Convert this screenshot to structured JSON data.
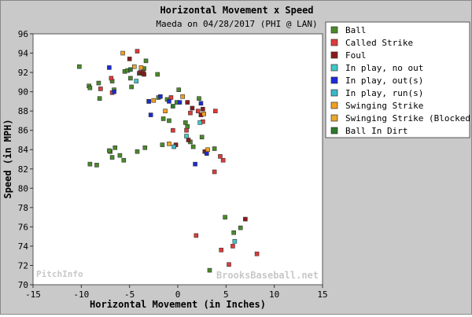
{
  "chart_data": {
    "type": "scatter",
    "title": "Horizontal Movement x Speed",
    "subtitle": "Maeda on 04/28/2017 (PHI @ LAN)",
    "xlabel": "Horizontal Movement (in Inches)",
    "ylabel": "Speed (in MPH)",
    "xlim": [
      -15,
      15
    ],
    "ylim": [
      70,
      96
    ],
    "xticks": [
      "-15",
      "-10",
      "-5",
      "0",
      "5",
      "10",
      "15"
    ],
    "yticks": [
      "70",
      "72",
      "74",
      "76",
      "78",
      "80",
      "82",
      "84",
      "86",
      "88",
      "90",
      "92",
      "94",
      "96"
    ],
    "grid": false,
    "legend_position": "top-right",
    "watermark_left": "PitchInfo",
    "watermark_right": "BrooksBaseball.net",
    "series": [
      {
        "name": "Ball",
        "color": "#4a8a2a",
        "points": [
          [
            -10.2,
            92.6
          ],
          [
            -9.2,
            90.6
          ],
          [
            -9.1,
            90.4
          ],
          [
            -8.2,
            90.9
          ],
          [
            -8.1,
            89.3
          ],
          [
            -6.8,
            91.1
          ],
          [
            -6.6,
            90.2
          ],
          [
            -5.5,
            92.1
          ],
          [
            -5.2,
            92.2
          ],
          [
            -4.9,
            91.4
          ],
          [
            -4.8,
            90.5
          ],
          [
            -4.0,
            91.9
          ],
          [
            -3.5,
            92.4
          ],
          [
            -3.3,
            93.2
          ],
          [
            -2.1,
            91.8
          ],
          [
            -2.0,
            89.4
          ],
          [
            -1.5,
            87.2
          ],
          [
            -1.1,
            89.2
          ],
          [
            -0.9,
            87.0
          ],
          [
            -0.1,
            88.9
          ],
          [
            0.1,
            90.2
          ],
          [
            1.0,
            86.4
          ],
          [
            1.3,
            84.8
          ],
          [
            2.2,
            89.3
          ],
          [
            -7.0,
            83.8
          ],
          [
            -6.8,
            83.2
          ],
          [
            -6.5,
            84.2
          ],
          [
            -6.0,
            83.4
          ],
          [
            -5.6,
            82.9
          ],
          [
            -4.2,
            83.8
          ],
          [
            -3.4,
            84.2
          ],
          [
            -1.6,
            84.5
          ],
          [
            0.8,
            86.8
          ],
          [
            1.6,
            84.3
          ],
          [
            2.5,
            85.3
          ],
          [
            3.8,
            84.1
          ],
          [
            -9.1,
            82.5
          ],
          [
            -8.4,
            82.4
          ],
          [
            -7.1,
            83.9
          ],
          [
            4.9,
            77.0
          ],
          [
            5.8,
            75.4
          ],
          [
            6.5,
            75.9
          ],
          [
            3.3,
            71.5
          ]
        ]
      },
      {
        "name": "Called Strike",
        "color": "#e03a3a",
        "points": [
          [
            -8.0,
            90.3
          ],
          [
            -6.9,
            91.4
          ],
          [
            -6.8,
            89.9
          ],
          [
            -4.2,
            94.2
          ],
          [
            -3.6,
            92.0
          ],
          [
            -0.7,
            89.4
          ],
          [
            0.9,
            86.0
          ],
          [
            1.3,
            87.8
          ],
          [
            2.1,
            88.0
          ],
          [
            2.6,
            86.9
          ],
          [
            3.9,
            88.0
          ],
          [
            4.4,
            83.3
          ],
          [
            4.7,
            82.9
          ],
          [
            3.8,
            81.7
          ],
          [
            1.9,
            75.1
          ],
          [
            4.5,
            73.6
          ],
          [
            5.7,
            74.0
          ],
          [
            5.3,
            72.1
          ],
          [
            8.2,
            73.2
          ],
          [
            -0.5,
            86.0
          ]
        ]
      },
      {
        "name": "Foul",
        "color": "#8a1a1a",
        "points": [
          [
            -5.0,
            93.4
          ],
          [
            -3.9,
            92.0
          ],
          [
            -3.6,
            91.9
          ],
          [
            -3.5,
            91.8
          ],
          [
            -0.2,
            84.5
          ],
          [
            1.1,
            85.0
          ],
          [
            1.5,
            88.3
          ],
          [
            1.0,
            88.9
          ],
          [
            2.4,
            87.6
          ],
          [
            2.6,
            88.2
          ],
          [
            2.8,
            83.8
          ],
          [
            7.0,
            76.8
          ]
        ]
      },
      {
        "name": "In play, no out",
        "color": "#40c8c8",
        "points": [
          [
            -4.3,
            91.1
          ],
          [
            -3.0,
            89.0
          ],
          [
            0.9,
            85.4
          ],
          [
            2.3,
            86.8
          ],
          [
            5.9,
            74.5
          ]
        ]
      },
      {
        "name": "In play, out(s)",
        "color": "#1a2ad8",
        "points": [
          [
            -7.1,
            92.5
          ],
          [
            -6.6,
            90.0
          ],
          [
            -3.0,
            89.0
          ],
          [
            -2.8,
            87.6
          ],
          [
            -1.8,
            89.5
          ],
          [
            -0.9,
            89.0
          ],
          [
            0.2,
            88.9
          ],
          [
            1.8,
            82.5
          ],
          [
            2.4,
            88.8
          ],
          [
            3.0,
            83.6
          ]
        ]
      },
      {
        "name": "In play, run(s)",
        "color": "#3ab8c8",
        "points": [
          [
            -0.4,
            84.3
          ]
        ]
      },
      {
        "name": "Swinging Strike",
        "color": "#f0a020",
        "points": [
          [
            -5.7,
            94.0
          ],
          [
            -3.8,
            92.5
          ],
          [
            -2.5,
            89.1
          ],
          [
            -1.3,
            88.0
          ],
          [
            -0.9,
            84.6
          ],
          [
            0.5,
            89.5
          ],
          [
            2.7,
            87.7
          ],
          [
            3.1,
            84.0
          ]
        ]
      },
      {
        "name": "Swinging Strike (Blocked)",
        "color": "#e8a830",
        "points": [
          [
            -4.5,
            92.6
          ]
        ]
      },
      {
        "name": "Ball In Dirt",
        "color": "#2a7a2a",
        "points": [
          [
            -4.9,
            92.3
          ],
          [
            -0.5,
            88.5
          ]
        ]
      }
    ]
  }
}
